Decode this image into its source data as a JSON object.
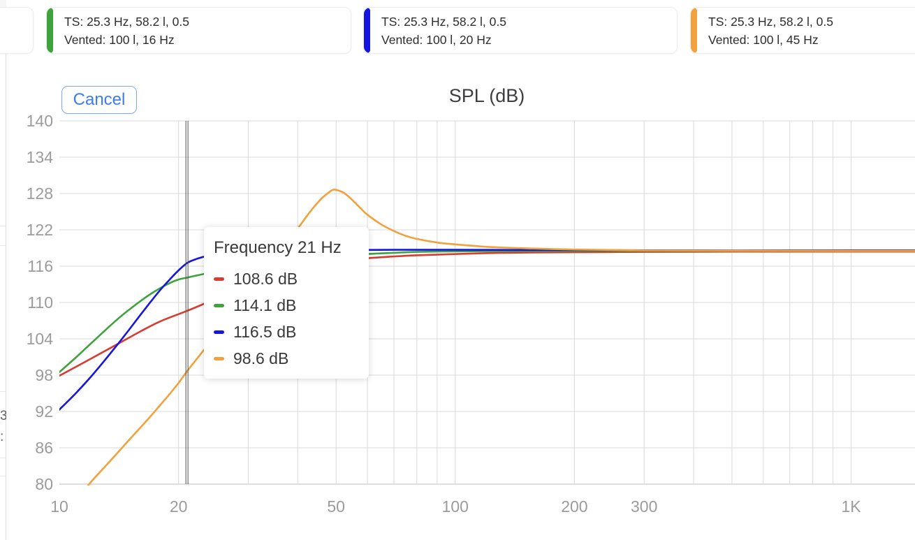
{
  "toolbar": {
    "cancel_label": "Cancel"
  },
  "legend_cards": [
    {
      "id": "partial",
      "accent": "",
      "line1": "",
      "line2": "",
      "partial": true
    },
    {
      "id": "green",
      "accent": "#3fa33c",
      "line1": "TS: 25.3 Hz, 58.2 l, 0.5",
      "line2": "Vented: 100 l, 16 Hz"
    },
    {
      "id": "blue",
      "accent": "#1515e0",
      "line1": "TS: 25.3 Hz, 58.2 l, 0.5",
      "line2": "Vented: 100 l, 20 Hz"
    },
    {
      "id": "orange",
      "accent": "#f2a13c",
      "line1": "TS: 25.3 Hz, 58.2 l, 0.5",
      "line2": "Vented: 100 l, 45 Hz"
    }
  ],
  "background_fragments": {
    "glyph1": "3",
    "glyph2": ":"
  },
  "chart_data": {
    "type": "line",
    "title": "SPL (dB)",
    "x_axis": {
      "scale": "log",
      "unit": "Hz",
      "min": 10,
      "max": 1450,
      "ticks": [
        {
          "value": 10,
          "label": "10"
        },
        {
          "value": 20,
          "label": "20"
        },
        {
          "value": 50,
          "label": "50"
        },
        {
          "value": 100,
          "label": "100"
        },
        {
          "value": 200,
          "label": "200"
        },
        {
          "value": 300,
          "label": "300"
        },
        {
          "value": 1000,
          "label": "1K"
        }
      ],
      "grid_frequencies": [
        20,
        30,
        40,
        50,
        60,
        70,
        80,
        90,
        100,
        200,
        300,
        400,
        500,
        600,
        700,
        800,
        900,
        1000
      ]
    },
    "y_axis": {
      "unit": "dB",
      "min": 80,
      "max": 140,
      "tick_step": 6,
      "ticks": [
        140,
        134,
        128,
        122,
        116,
        110,
        104,
        98,
        92,
        86,
        80
      ]
    },
    "grid": true,
    "legend_position": "top",
    "cursor_frequency_hz": 21,
    "tooltip": {
      "title": "Frequency 21 Hz",
      "frequency_hz": 21,
      "rows": [
        {
          "series": "red",
          "color": "#d93b30",
          "value_db": 108.6,
          "value_label": "108.6 dB"
        },
        {
          "series": "green",
          "color": "#3fa33c",
          "value_db": 114.1,
          "value_label": "114.1 dB"
        },
        {
          "series": "blue",
          "color": "#1515e0",
          "value_db": 116.5,
          "value_label": "116.5 dB"
        },
        {
          "series": "orange",
          "color": "#f2a13c",
          "value_db": 98.6,
          "value_label": "98.6 dB"
        }
      ]
    },
    "series": [
      {
        "name": "red",
        "color": "#d93b30",
        "points": [
          [
            10,
            97.9
          ],
          [
            12,
            100.7
          ],
          [
            14,
            103.1
          ],
          [
            16,
            105.2
          ],
          [
            18,
            106.9
          ],
          [
            21,
            108.6
          ],
          [
            24,
            110.2
          ],
          [
            27,
            111.6
          ],
          [
            30,
            112.7
          ],
          [
            35,
            114.2
          ],
          [
            40,
            115.3
          ],
          [
            45,
            116.0
          ],
          [
            50,
            116.6
          ],
          [
            60,
            117.3
          ],
          [
            70,
            117.6
          ],
          [
            80,
            117.8
          ],
          [
            100,
            118.0
          ],
          [
            130,
            118.2
          ],
          [
            200,
            118.3
          ],
          [
            300,
            118.35
          ],
          [
            500,
            118.4
          ],
          [
            1000,
            118.4
          ],
          [
            1450,
            118.4
          ]
        ]
      },
      {
        "name": "green",
        "color": "#3fa33c",
        "points": [
          [
            10,
            98.5
          ],
          [
            11,
            100.9
          ],
          [
            12,
            103.2
          ],
          [
            13,
            105.3
          ],
          [
            14,
            107.2
          ],
          [
            15,
            108.8
          ],
          [
            16,
            110.2
          ],
          [
            17,
            111.4
          ],
          [
            18,
            112.4
          ],
          [
            19,
            113.2
          ],
          [
            20,
            113.8
          ],
          [
            21,
            114.1
          ],
          [
            22,
            114.4
          ],
          [
            24,
            114.9
          ],
          [
            26,
            115.2
          ],
          [
            28,
            115.5
          ],
          [
            30,
            115.8
          ],
          [
            35,
            116.4
          ],
          [
            40,
            116.9
          ],
          [
            45,
            117.3
          ],
          [
            50,
            117.6
          ],
          [
            60,
            118.0
          ],
          [
            70,
            118.2
          ],
          [
            80,
            118.35
          ],
          [
            100,
            118.45
          ],
          [
            150,
            118.5
          ],
          [
            250,
            118.5
          ],
          [
            500,
            118.5
          ],
          [
            1000,
            118.5
          ],
          [
            1450,
            118.5
          ]
        ]
      },
      {
        "name": "blue",
        "color": "#1515e0",
        "points": [
          [
            10,
            92.3
          ],
          [
            11,
            95.0
          ],
          [
            12,
            97.7
          ],
          [
            13,
            100.4
          ],
          [
            14,
            103.0
          ],
          [
            15,
            105.5
          ],
          [
            16,
            107.9
          ],
          [
            17,
            110.1
          ],
          [
            18,
            112.1
          ],
          [
            19,
            113.8
          ],
          [
            20,
            115.3
          ],
          [
            21,
            116.5
          ],
          [
            22,
            117.1
          ],
          [
            23,
            117.5
          ],
          [
            24,
            117.8
          ],
          [
            26,
            118.1
          ],
          [
            28,
            118.3
          ],
          [
            30,
            118.4
          ],
          [
            35,
            118.55
          ],
          [
            40,
            118.6
          ],
          [
            50,
            118.65
          ],
          [
            70,
            118.7
          ],
          [
            100,
            118.7
          ],
          [
            200,
            118.65
          ],
          [
            500,
            118.6
          ],
          [
            1000,
            118.6
          ],
          [
            1450,
            118.6
          ]
        ]
      },
      {
        "name": "orange",
        "color": "#f2a13c",
        "points": [
          [
            10,
            73.8
          ],
          [
            11,
            77.2
          ],
          [
            12,
            80.3
          ],
          [
            13,
            82.8
          ],
          [
            14,
            85.1
          ],
          [
            15,
            87.3
          ],
          [
            16,
            89.3
          ],
          [
            17,
            91.2
          ],
          [
            18,
            93.1
          ],
          [
            19,
            94.9
          ],
          [
            20,
            96.7
          ],
          [
            21,
            98.6
          ],
          [
            22,
            100.3
          ],
          [
            24,
            103.4
          ],
          [
            26,
            106.3
          ],
          [
            28,
            109.0
          ],
          [
            30,
            111.5
          ],
          [
            32,
            113.8
          ],
          [
            34,
            116.0
          ],
          [
            36,
            118.2
          ],
          [
            38,
            120.3
          ],
          [
            40,
            122.2
          ],
          [
            42,
            124.1
          ],
          [
            44,
            125.8
          ],
          [
            46,
            127.2
          ],
          [
            48,
            128.2
          ],
          [
            49,
            128.6
          ],
          [
            50,
            128.6
          ],
          [
            52,
            128.2
          ],
          [
            54,
            127.4
          ],
          [
            56,
            126.4
          ],
          [
            58,
            125.4
          ],
          [
            60,
            124.5
          ],
          [
            65,
            122.9
          ],
          [
            70,
            121.8
          ],
          [
            75,
            121.0
          ],
          [
            80,
            120.5
          ],
          [
            90,
            119.9
          ],
          [
            100,
            119.6
          ],
          [
            120,
            119.2
          ],
          [
            150,
            118.95
          ],
          [
            200,
            118.75
          ],
          [
            300,
            118.6
          ],
          [
            500,
            118.55
          ],
          [
            1000,
            118.5
          ],
          [
            1450,
            118.5
          ]
        ]
      }
    ],
    "grid_color": "#d9d9d9",
    "axis_line_color": "#bdbdbd",
    "tick_label_color": "#9b9b9b",
    "cursor_color": "#4f4f4f"
  }
}
